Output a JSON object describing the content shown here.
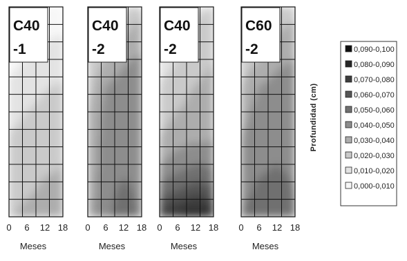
{
  "chart_data": {
    "type": "heatmap",
    "ylabel": "Profundidad (cm)",
    "legend": {
      "placement": "right",
      "ranges": [
        "0,090-0,100",
        "0,080-0,090",
        "0,070-0,080",
        "0,060-0,070",
        "0,050-0,060",
        "0,040-0,050",
        "0,030-0,040",
        "0,020-0,030",
        "0,010-0,020",
        "0,000-0,010"
      ],
      "colors": [
        "#0e0e0e",
        "#262626",
        "#3d3d3d",
        "#555555",
        "#707070",
        "#8d8d8d",
        "#adadad",
        "#cacaca",
        "#e3e3e3",
        "#f7f7f7"
      ]
    },
    "x_ticks": [
      "0",
      "6",
      "12",
      "18"
    ],
    "panels": [
      {
        "title_line1": "C40",
        "title_line2": "-1",
        "xlabel": "Meses",
        "x": [
          0,
          6,
          12,
          18
        ],
        "z": [
          [
            0.002,
            0.003,
            0.004,
            0.005
          ],
          [
            0.004,
            0.006,
            0.008,
            0.01
          ],
          [
            0.007,
            0.01,
            0.013,
            0.016
          ],
          [
            0.011,
            0.015,
            0.019,
            0.021
          ],
          [
            0.016,
            0.02,
            0.023,
            0.025
          ],
          [
            0.021,
            0.024,
            0.026,
            0.028
          ],
          [
            0.024,
            0.027,
            0.029,
            0.03
          ],
          [
            0.027,
            0.029,
            0.031,
            0.031
          ],
          [
            0.029,
            0.032,
            0.034,
            0.032
          ]
        ]
      },
      {
        "title_line1": "C40",
        "title_line2": "-2",
        "xlabel": "Meses",
        "x": [
          0,
          6,
          12,
          18
        ],
        "z": [
          [
            0.01,
            0.012,
            0.015,
            0.028
          ],
          [
            0.015,
            0.02,
            0.028,
            0.036
          ],
          [
            0.02,
            0.03,
            0.038,
            0.042
          ],
          [
            0.025,
            0.04,
            0.044,
            0.045
          ],
          [
            0.03,
            0.043,
            0.046,
            0.046
          ],
          [
            0.033,
            0.044,
            0.047,
            0.047
          ],
          [
            0.034,
            0.045,
            0.048,
            0.047
          ],
          [
            0.035,
            0.046,
            0.052,
            0.048
          ],
          [
            0.036,
            0.048,
            0.055,
            0.049
          ]
        ]
      },
      {
        "title_line1": "C40",
        "title_line2": "-2",
        "xlabel": "Meses",
        "x": [
          0,
          6,
          12,
          18
        ],
        "z": [
          [
            0.01,
            0.012,
            0.018,
            0.02
          ],
          [
            0.012,
            0.015,
            0.022,
            0.026
          ],
          [
            0.015,
            0.02,
            0.027,
            0.03
          ],
          [
            0.02,
            0.025,
            0.03,
            0.032
          ],
          [
            0.025,
            0.03,
            0.034,
            0.035
          ],
          [
            0.03,
            0.036,
            0.038,
            0.039
          ],
          [
            0.04,
            0.045,
            0.05,
            0.048
          ],
          [
            0.055,
            0.06,
            0.065,
            0.062
          ],
          [
            0.075,
            0.082,
            0.088,
            0.085
          ]
        ]
      },
      {
        "title_line1": "C60",
        "title_line2": "-2",
        "xlabel": "Meses",
        "x": [
          0,
          6,
          12,
          18
        ],
        "z": [
          [
            0.01,
            0.015,
            0.022,
            0.025
          ],
          [
            0.015,
            0.02,
            0.03,
            0.034
          ],
          [
            0.022,
            0.03,
            0.038,
            0.04
          ],
          [
            0.03,
            0.04,
            0.043,
            0.044
          ],
          [
            0.036,
            0.044,
            0.046,
            0.046
          ],
          [
            0.04,
            0.046,
            0.048,
            0.047
          ],
          [
            0.043,
            0.048,
            0.05,
            0.048
          ],
          [
            0.046,
            0.052,
            0.054,
            0.05
          ],
          [
            0.05,
            0.058,
            0.06,
            0.052
          ]
        ]
      }
    ]
  }
}
